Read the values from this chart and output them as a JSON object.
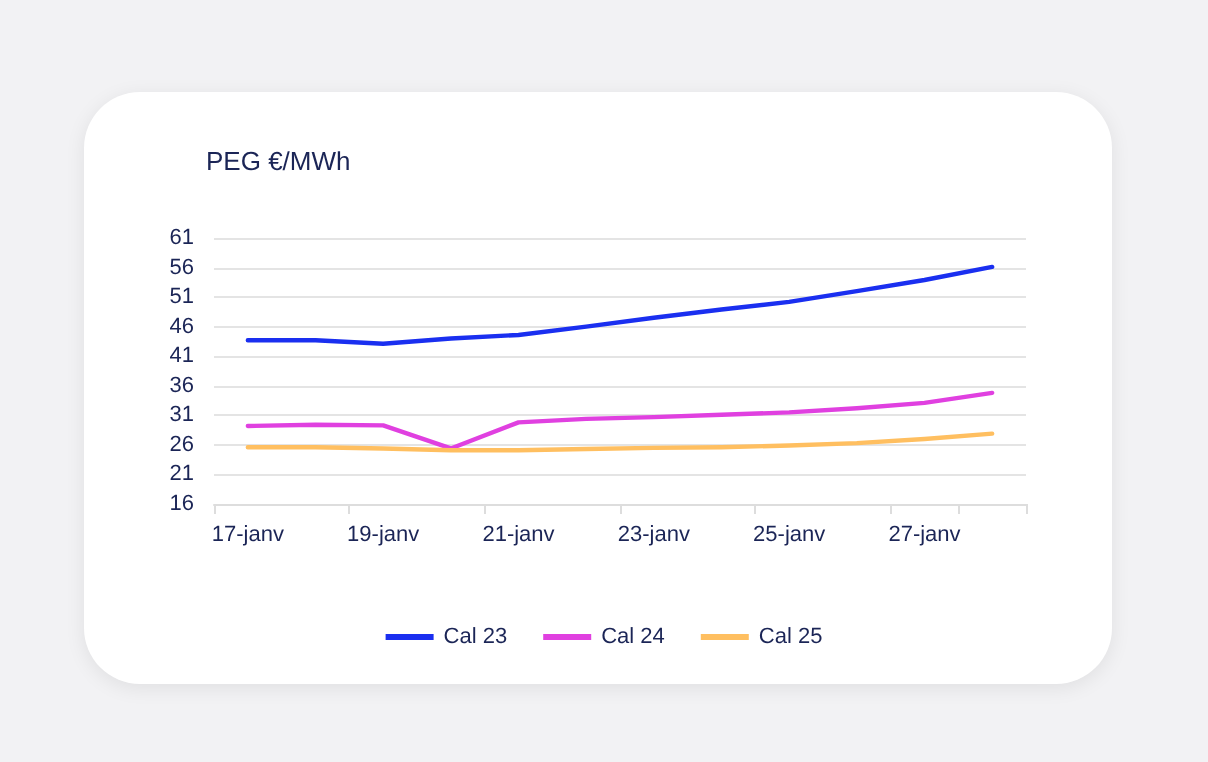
{
  "chart_data": {
    "type": "line",
    "title": "PEG €/MWh",
    "categories": [
      "17-janv",
      null,
      "19-janv",
      null,
      "21-janv",
      null,
      "23-janv",
      null,
      "25-janv",
      null,
      "27-janv",
      null
    ],
    "series": [
      {
        "name": "Cal 23",
        "color": "#1a2ff0",
        "values": [
          43.7,
          43.7,
          43.1,
          44.0,
          44.6,
          46.0,
          47.5,
          48.9,
          50.2,
          52.0,
          53.9,
          56.1
        ]
      },
      {
        "name": "Cal 24",
        "color": "#e040e0",
        "values": [
          29.2,
          29.4,
          29.3,
          25.4,
          29.8,
          30.4,
          30.7,
          31.1,
          31.5,
          32.2,
          33.1,
          34.8
        ]
      },
      {
        "name": "Cal 25",
        "color": "#ffbf60",
        "values": [
          25.6,
          25.6,
          25.4,
          25.1,
          25.1,
          25.3,
          25.5,
          25.6,
          25.9,
          26.3,
          27.0,
          27.9
        ]
      }
    ],
    "ylim": [
      16,
      61
    ],
    "yticks": [
      16,
      21,
      26,
      31,
      36,
      41,
      46,
      51,
      56,
      61
    ],
    "grid": "y",
    "legend": "bottom",
    "marker": "none",
    "line_style": "solid"
  }
}
